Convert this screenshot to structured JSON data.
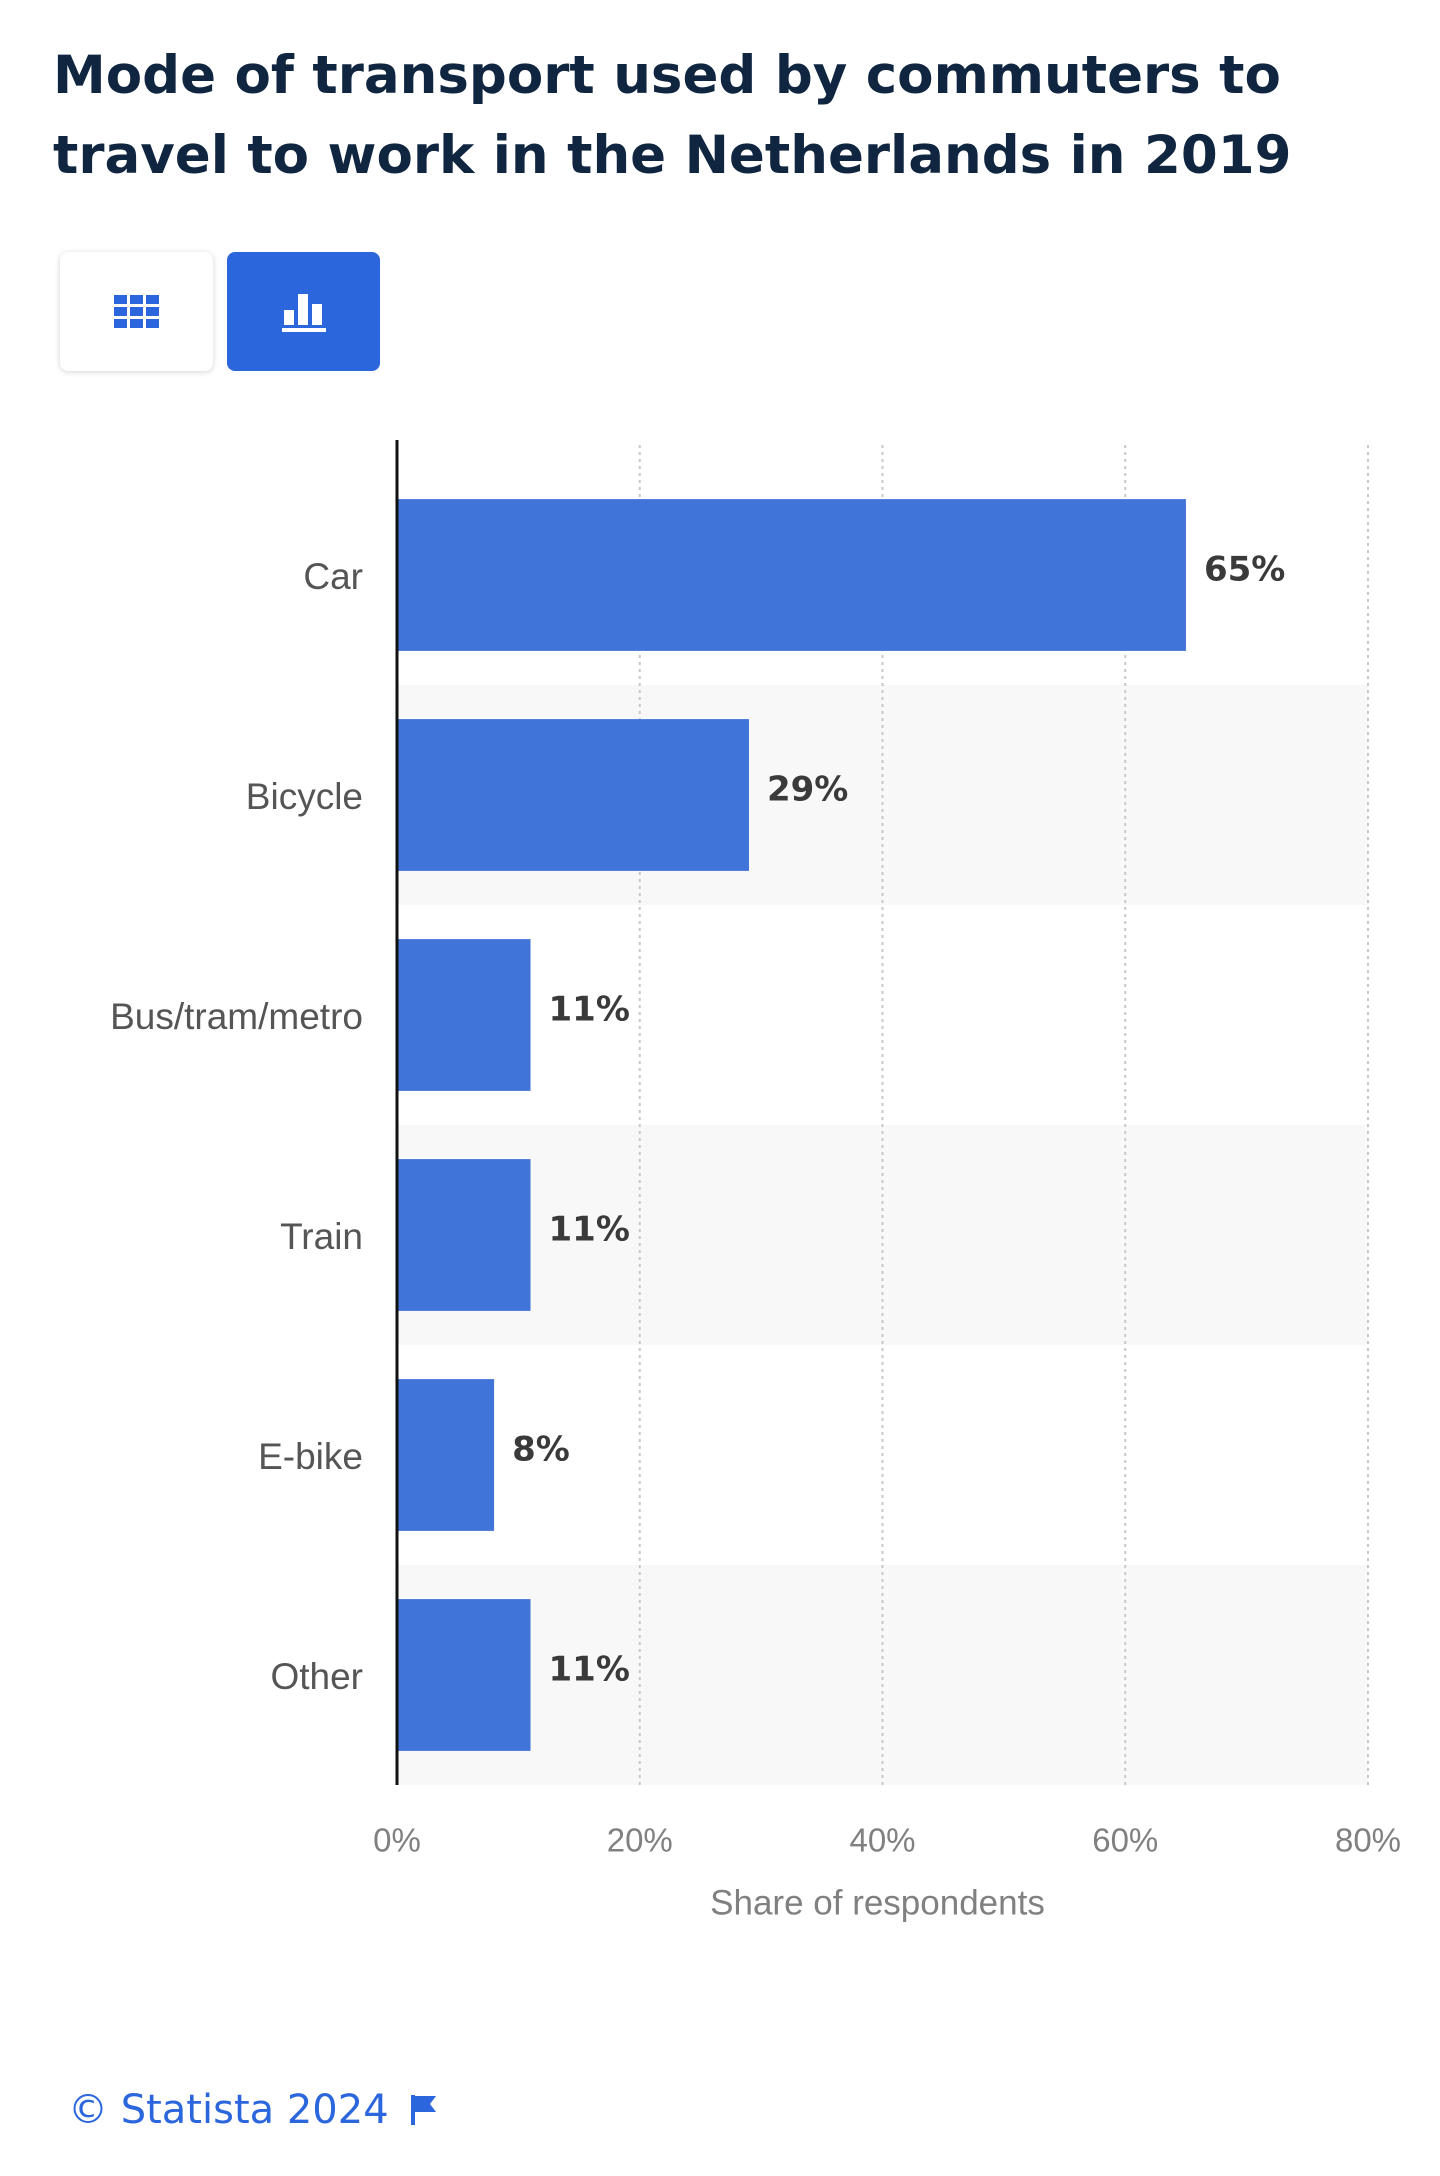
{
  "header": {
    "title": "Mode of transport used by commuters to travel to work in the Netherlands in 2019"
  },
  "view_toggle": {
    "table_icon": "grid-icon",
    "chart_icon": "bar-chart-icon",
    "active": "chart"
  },
  "colors": {
    "bar": "#4174d9",
    "active_button": "#2c66dc",
    "title": "#0f2540",
    "band": "#f8f8f8"
  },
  "chart_data": {
    "type": "bar",
    "orientation": "horizontal",
    "categories": [
      "Car",
      "Bicycle",
      "Bus/tram/metro",
      "Train",
      "E-bike",
      "Other"
    ],
    "values": [
      65,
      29,
      11,
      11,
      8,
      11
    ],
    "value_labels": [
      "65%",
      "29%",
      "11%",
      "11%",
      "8%",
      "11%"
    ],
    "xlim": [
      0,
      80
    ],
    "xticks": [
      0,
      20,
      40,
      60,
      80
    ],
    "xtick_labels": [
      "0%",
      "20%",
      "40%",
      "60%",
      "80%"
    ],
    "xlabel": "Share of respondents",
    "ylabel": "",
    "grid": true
  },
  "footer": {
    "copyright": "© Statista 2024",
    "flag_icon": "flag-icon"
  }
}
